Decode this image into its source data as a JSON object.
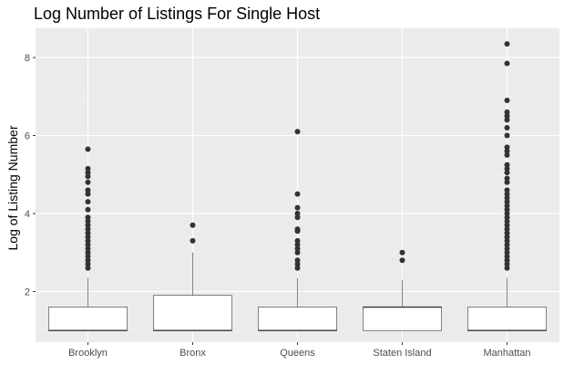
{
  "chart_data": {
    "type": "box",
    "title": "Log Number of Listings For Single Host",
    "xlabel": "",
    "ylabel": "Log of Listing Number",
    "ylim": [
      0.7,
      8.75
    ],
    "yticks": [
      2,
      4,
      6,
      8
    ],
    "grid": true,
    "colors": {
      "panel": "#ebebeb",
      "gridMajor": "#ffffff",
      "gridMinor": "#f4f4f4",
      "boxFill": "#ffffff",
      "stroke": "#333333",
      "outlier": "#333333"
    },
    "categories": [
      "Brooklyn",
      "Bronx",
      "Queens",
      "Staten Island",
      "Manhattan"
    ],
    "boxes": [
      {
        "min": 1,
        "q1": 1,
        "median": 1,
        "q3": 1.6,
        "max": 2.35,
        "outliers": [
          2.6,
          2.7,
          2.8,
          2.9,
          3.0,
          3.1,
          3.2,
          3.3,
          3.4,
          3.5,
          3.6,
          3.7,
          3.8,
          3.9,
          4.1,
          4.3,
          4.5,
          4.6,
          4.8,
          4.95,
          5.05,
          5.15,
          5.65
        ]
      },
      {
        "min": 1,
        "q1": 1,
        "median": 1,
        "q3": 1.9,
        "max": 3.0,
        "outliers": [
          3.3,
          3.7
        ]
      },
      {
        "min": 1,
        "q1": 1,
        "median": 1,
        "q3": 1.6,
        "max": 2.35,
        "outliers": [
          2.6,
          2.7,
          2.8,
          3.0,
          3.1,
          3.2,
          3.3,
          3.55,
          3.6,
          3.9,
          4.0,
          4.15,
          4.5,
          6.1
        ]
      },
      {
        "min": 1,
        "q1": 1,
        "median": 1.6,
        "q3": 1.6,
        "max": 2.3,
        "outliers": [
          2.8,
          3.0
        ]
      },
      {
        "min": 1,
        "q1": 1,
        "median": 1,
        "q3": 1.6,
        "max": 2.35,
        "outliers": [
          2.6,
          2.7,
          2.8,
          2.9,
          3.0,
          3.1,
          3.2,
          3.3,
          3.4,
          3.5,
          3.6,
          3.7,
          3.8,
          3.9,
          4.0,
          4.1,
          4.2,
          4.3,
          4.4,
          4.5,
          4.6,
          4.8,
          4.9,
          5.05,
          5.15,
          5.25,
          5.5,
          5.6,
          5.7,
          6.0,
          6.2,
          6.4,
          6.5,
          6.6,
          6.9,
          7.85,
          8.35
        ]
      }
    ]
  }
}
